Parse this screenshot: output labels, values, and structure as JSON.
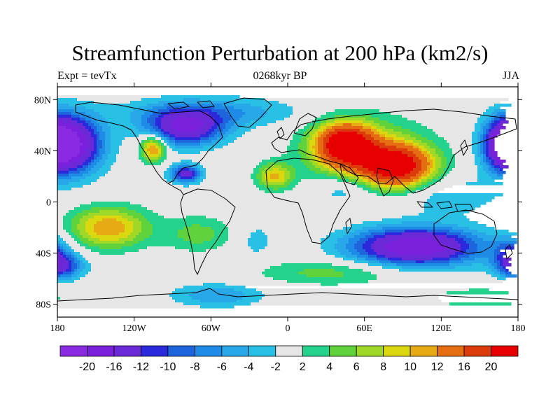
{
  "title": "Streamfunction Perturbation at 200 hPa (km2/s)",
  "left_label": "Expt = tevTx",
  "center_label": "0268kyr BP",
  "right_label": "JJA",
  "lat_ticks": [
    {
      "value": 80,
      "label": "80N"
    },
    {
      "value": 40,
      "label": "40N"
    },
    {
      "value": 0,
      "label": "0"
    },
    {
      "value": -40,
      "label": "40S"
    },
    {
      "value": -80,
      "label": "80S"
    }
  ],
  "lon_ticks": [
    {
      "value": -180,
      "label": "180"
    },
    {
      "value": -120,
      "label": "120W"
    },
    {
      "value": -60,
      "label": "60W"
    },
    {
      "value": 0,
      "label": "0"
    },
    {
      "value": 60,
      "label": "60E"
    },
    {
      "value": 120,
      "label": "120E"
    },
    {
      "value": 180,
      "label": "180"
    }
  ],
  "colorbar": {
    "colors": [
      "#8a2be2",
      "#7a20dc",
      "#6a28d6",
      "#2a2adc",
      "#1e64dc",
      "#1e8ce6",
      "#28a8e8",
      "#28c0e4",
      "#e6e6e6",
      "#24d28c",
      "#60d23c",
      "#a0d828",
      "#dcd810",
      "#e6aa14",
      "#e66e12",
      "#dc3c0c",
      "#e60000"
    ],
    "labels": [
      "-20",
      "-16",
      "-12",
      "-10",
      "-8",
      "-6",
      "-4",
      "-2",
      "2",
      "4",
      "6",
      "8",
      "10",
      "12",
      "16",
      "20"
    ]
  },
  "field_blobs": [
    {
      "lon": 45,
      "lat": 45,
      "rlon": 22,
      "rlat": 16,
      "value": 22
    },
    {
      "lon": 85,
      "lat": 28,
      "rlon": 28,
      "rlat": 16,
      "value": 22
    },
    {
      "lon": 60,
      "lat": 38,
      "rlon": 48,
      "rlat": 28,
      "value": 8
    },
    {
      "lon": -105,
      "lat": 42,
      "rlon": 10,
      "rlat": 10,
      "value": 14
    },
    {
      "lon": -10,
      "lat": 20,
      "rlon": 14,
      "rlat": 10,
      "value": 10
    },
    {
      "lon": -140,
      "lat": -20,
      "rlon": 30,
      "rlat": 16,
      "value": 12
    },
    {
      "lon": -70,
      "lat": -25,
      "rlon": 28,
      "rlat": 14,
      "value": 5
    },
    {
      "lon": 35,
      "lat": -55,
      "rlon": 60,
      "rlat": 10,
      "value": 5
    },
    {
      "lon": 150,
      "lat": -75,
      "rlon": 40,
      "rlat": 8,
      "value": 4
    },
    {
      "lon": -170,
      "lat": 45,
      "rlon": 25,
      "rlat": 22,
      "value": -20
    },
    {
      "lon": 172,
      "lat": 45,
      "rlon": 18,
      "rlat": 20,
      "value": -20
    },
    {
      "lon": -80,
      "lat": 58,
      "rlon": 30,
      "rlat": 14,
      "value": -16
    },
    {
      "lon": -80,
      "lat": 22,
      "rlon": 12,
      "rlat": 7,
      "value": -14
    },
    {
      "lon": 100,
      "lat": -35,
      "rlon": 50,
      "rlat": 15,
      "value": -20
    },
    {
      "lon": -60,
      "lat": 70,
      "rlon": 70,
      "rlat": 12,
      "value": -6
    },
    {
      "lon": -55,
      "lat": -73,
      "rlon": 35,
      "rlat": 9,
      "value": -6
    },
    {
      "lon": -178,
      "lat": -50,
      "rlon": 18,
      "rlat": 10,
      "value": -12
    },
    {
      "lon": 175,
      "lat": -40,
      "rlon": 14,
      "rlat": 14,
      "value": -8
    },
    {
      "lon": 125,
      "lat": 5,
      "rlon": 40,
      "rlat": 15,
      "value": -4
    },
    {
      "lon": 45,
      "lat": 10,
      "rlon": 25,
      "rlat": 12,
      "value": -5
    },
    {
      "lon": -25,
      "lat": -30,
      "rlon": 15,
      "rlat": 15,
      "value": -3
    }
  ]
}
